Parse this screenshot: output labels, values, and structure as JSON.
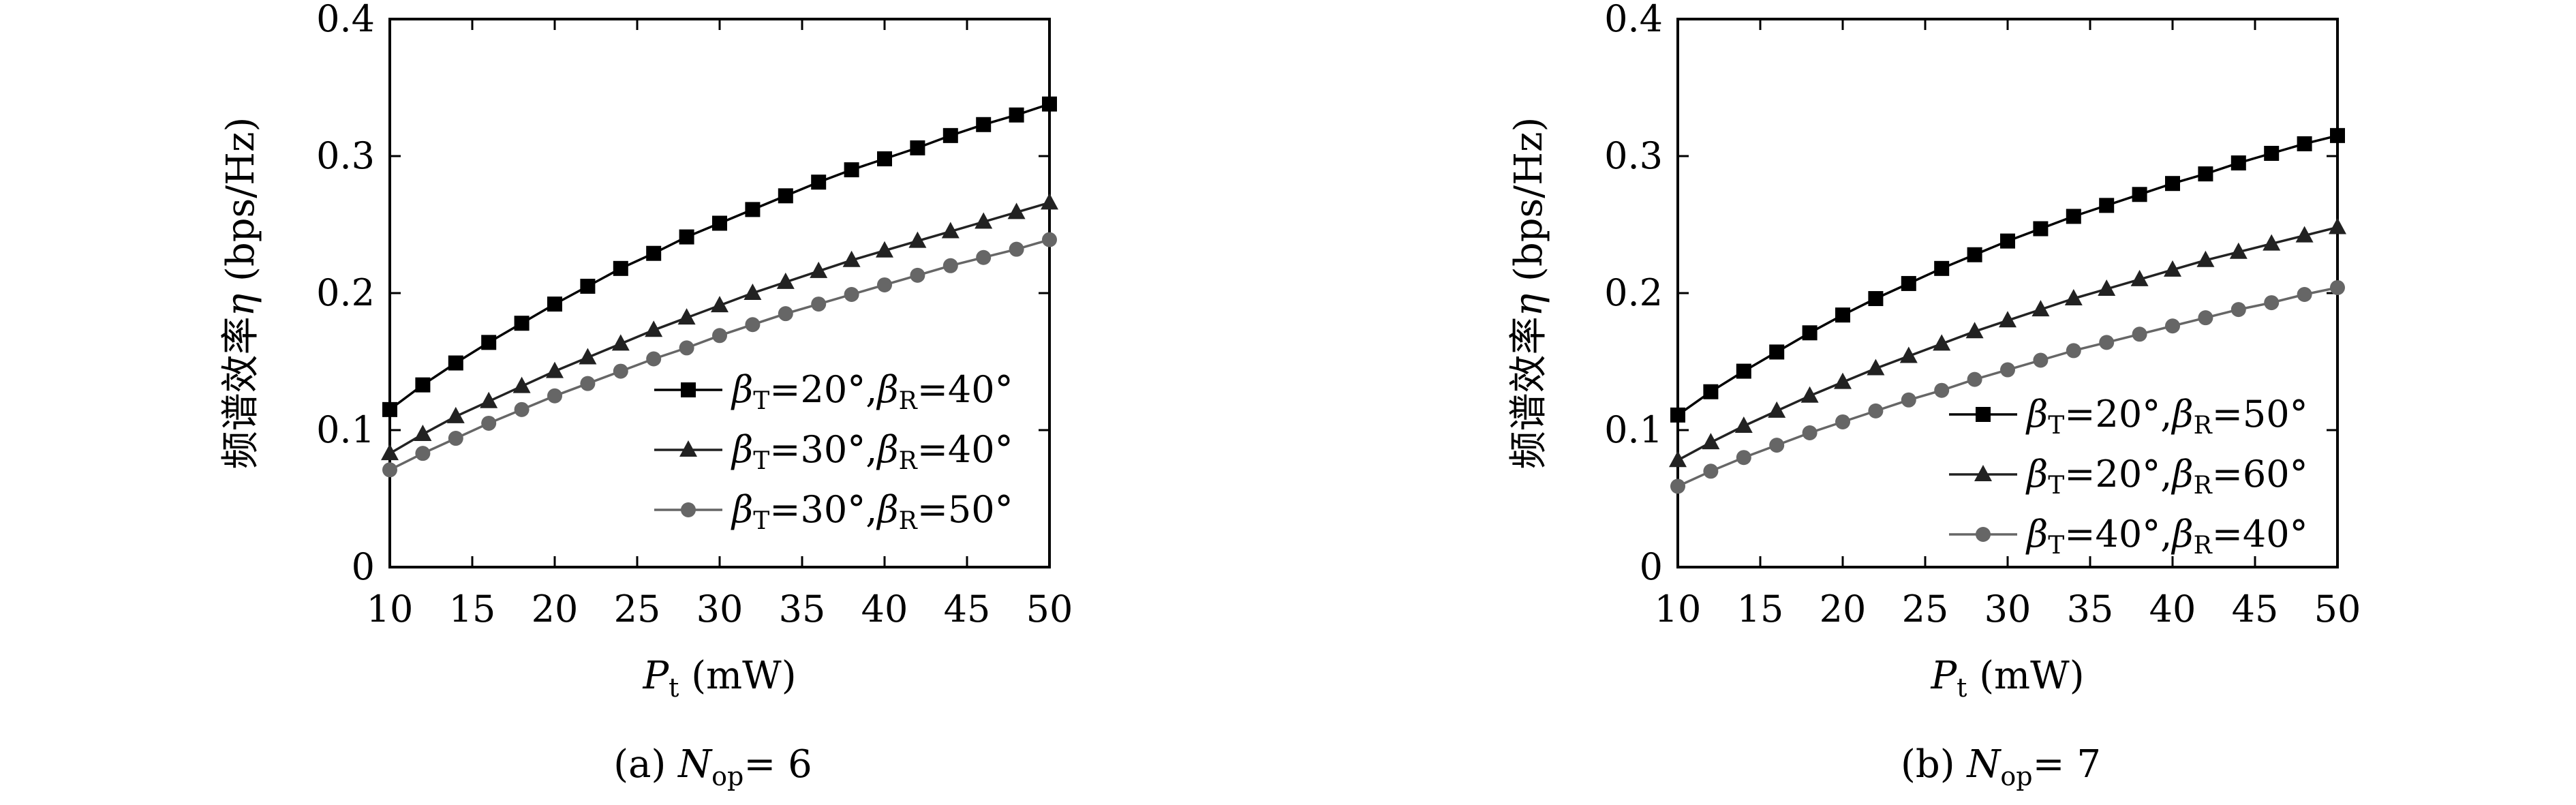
{
  "chart_data": [
    {
      "type": "line",
      "caption": {
        "prefix": "(a) ",
        "var": "N",
        "sub": "op",
        "suffix": "= 6"
      },
      "xlabel": {
        "var": "P",
        "sub": "t",
        "unit": " (mW)"
      },
      "ylabel": {
        "text": "频谱效率",
        "var": "η",
        "unit": " (bps/Hz)"
      },
      "xlim": [
        10,
        50
      ],
      "ylim": [
        0,
        0.4
      ],
      "xticks": [
        "10",
        "15",
        "20",
        "25",
        "30",
        "35",
        "40",
        "45",
        "50"
      ],
      "yticks": [
        "0",
        "0.1",
        "0.2",
        "0.3",
        "0.4"
      ],
      "legend_position": "center-right",
      "x": [
        10,
        12,
        14,
        16,
        18,
        20,
        22,
        24,
        26,
        28,
        30,
        32,
        34,
        36,
        38,
        40,
        42,
        44,
        46,
        48,
        50
      ],
      "series": [
        {
          "name": "βT=20°,βR=40°",
          "label": {
            "b1": "β",
            "s1": "T",
            "v1": "=20°,",
            "b2": "β",
            "s2": "R",
            "v2": "=40°"
          },
          "marker": "square",
          "color": "#000000",
          "values": [
            0.115,
            0.133,
            0.149,
            0.164,
            0.178,
            0.192,
            0.205,
            0.218,
            0.229,
            0.241,
            0.251,
            0.261,
            0.271,
            0.281,
            0.29,
            0.298,
            0.306,
            0.315,
            0.323,
            0.33,
            0.338
          ]
        },
        {
          "name": "βT=30°,βR=40°",
          "label": {
            "b1": "β",
            "s1": "T",
            "v1": "=30°,",
            "b2": "β",
            "s2": "R",
            "v2": "=40°"
          },
          "marker": "triangle",
          "color": "#222222",
          "values": [
            0.083,
            0.097,
            0.11,
            0.121,
            0.132,
            0.143,
            0.153,
            0.163,
            0.173,
            0.182,
            0.191,
            0.2,
            0.208,
            0.216,
            0.224,
            0.231,
            0.238,
            0.245,
            0.252,
            0.259,
            0.266
          ]
        },
        {
          "name": "βT=30°,βR=50°",
          "label": {
            "b1": "β",
            "s1": "T",
            "v1": "=30°,",
            "b2": "β",
            "s2": "R",
            "v2": "=50°"
          },
          "marker": "circle",
          "color": "#666666",
          "values": [
            0.071,
            0.083,
            0.094,
            0.105,
            0.115,
            0.125,
            0.134,
            0.143,
            0.152,
            0.16,
            0.169,
            0.177,
            0.185,
            0.192,
            0.199,
            0.206,
            0.213,
            0.22,
            0.226,
            0.232,
            0.239
          ]
        }
      ]
    },
    {
      "type": "line",
      "caption": {
        "prefix": "(b) ",
        "var": "N",
        "sub": "op",
        "suffix": "= 7"
      },
      "xlabel": {
        "var": "P",
        "sub": "t",
        "unit": " (mW)"
      },
      "ylabel": {
        "text": "频谱效率",
        "var": "η",
        "unit": " (bps/Hz)"
      },
      "xlim": [
        10,
        50
      ],
      "ylim": [
        0,
        0.4
      ],
      "xticks": [
        "10",
        "15",
        "20",
        "25",
        "30",
        "35",
        "40",
        "45",
        "50"
      ],
      "yticks": [
        "0",
        "0.1",
        "0.2",
        "0.3",
        "0.4"
      ],
      "legend_position": "lower-right",
      "x": [
        10,
        12,
        14,
        16,
        18,
        20,
        22,
        24,
        26,
        28,
        30,
        32,
        34,
        36,
        38,
        40,
        42,
        44,
        46,
        48,
        50
      ],
      "series": [
        {
          "name": "βT=20°,βR=50°",
          "label": {
            "b1": "β",
            "s1": "T",
            "v1": "=20°,",
            "b2": "β",
            "s2": "R",
            "v2": "=50°"
          },
          "marker": "square",
          "color": "#000000",
          "values": [
            0.111,
            0.128,
            0.143,
            0.157,
            0.171,
            0.184,
            0.196,
            0.207,
            0.218,
            0.228,
            0.238,
            0.247,
            0.256,
            0.264,
            0.272,
            0.28,
            0.287,
            0.295,
            0.302,
            0.309,
            0.315
          ]
        },
        {
          "name": "βT=20°,βR=60°",
          "label": {
            "b1": "β",
            "s1": "T",
            "v1": "=20°,",
            "b2": "β",
            "s2": "R",
            "v2": "=60°"
          },
          "marker": "triangle",
          "color": "#222222",
          "values": [
            0.078,
            0.091,
            0.103,
            0.114,
            0.125,
            0.135,
            0.145,
            0.154,
            0.163,
            0.172,
            0.18,
            0.188,
            0.196,
            0.203,
            0.21,
            0.217,
            0.224,
            0.23,
            0.236,
            0.242,
            0.248
          ]
        },
        {
          "name": "βT=40°,βR=40°",
          "label": {
            "b1": "β",
            "s1": "T",
            "v1": "=40°,",
            "b2": "β",
            "s2": "R",
            "v2": "=40°"
          },
          "marker": "circle",
          "color": "#666666",
          "values": [
            0.059,
            0.07,
            0.08,
            0.089,
            0.098,
            0.106,
            0.114,
            0.122,
            0.129,
            0.137,
            0.144,
            0.151,
            0.158,
            0.164,
            0.17,
            0.176,
            0.182,
            0.188,
            0.193,
            0.199,
            0.204
          ]
        }
      ]
    }
  ]
}
